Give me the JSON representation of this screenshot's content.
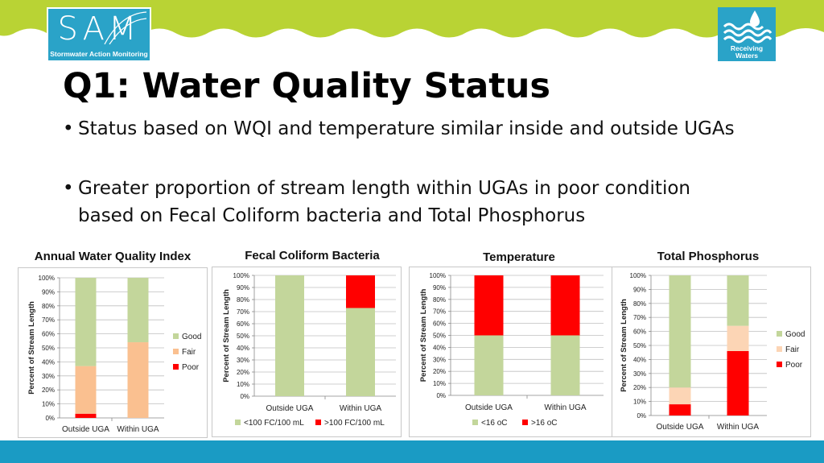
{
  "header": {
    "sam_logo": {
      "mark": "SAM",
      "subtitle": "Stormwater Action Monitoring"
    },
    "receiving_waters_logo": {
      "line1": "Receiving",
      "line2": "Waters"
    }
  },
  "slide": {
    "title": "Q1: Water Quality Status",
    "bullets": [
      "Status based on WQI and temperature similar inside and outside UGAs",
      "Greater proportion of stream length within UGAs in poor condition based on Fecal Coliform bacteria and Total Phosphorus"
    ]
  },
  "colors": {
    "green": "#8dc63f",
    "band_blue": "#1a9bc4",
    "good": "#c3d69b",
    "fair": "#fac090",
    "fair_tp": "#fcd5b5",
    "poor": "#ff0000",
    "gridline": "#bfbfbf"
  },
  "chart_data": [
    {
      "type": "bar",
      "stacked": true,
      "title": "Annual Water Quality Index",
      "ylabel": "Percent of Stream Length",
      "xlabel": "",
      "ylim": [
        0,
        100
      ],
      "yticks": [
        "0%",
        "10%",
        "20%",
        "30%",
        "40%",
        "50%",
        "60%",
        "70%",
        "80%",
        "90%",
        "100%"
      ],
      "categories": [
        "Outside UGA",
        "Within UGA"
      ],
      "series": [
        {
          "name": "Poor",
          "color": "#ff0000",
          "values": [
            3,
            0
          ]
        },
        {
          "name": "Fair",
          "color": "#fac090",
          "values": [
            34,
            54
          ]
        },
        {
          "name": "Good",
          "color": "#c3d69b",
          "values": [
            63,
            46
          ]
        }
      ],
      "legend": "right",
      "legend_order": [
        "Good",
        "Fair",
        "Poor"
      ],
      "grid": true
    },
    {
      "type": "bar",
      "stacked": true,
      "title": "Fecal Coliform Bacteria",
      "ylabel": "Percent of Stream Length",
      "xlabel": "",
      "ylim": [
        0,
        100
      ],
      "yticks": [
        "0%",
        "10%",
        "20%",
        "30%",
        "40%",
        "50%",
        "60%",
        "70%",
        "80%",
        "90%",
        "100%"
      ],
      "categories": [
        "Outside UGA",
        "Within UGA"
      ],
      "series": [
        {
          "name": "<100 FC/100 mL",
          "color": "#c3d69b",
          "values": [
            100,
            73
          ]
        },
        {
          "name": ">100 FC/100 mL",
          "color": "#ff0000",
          "values": [
            0,
            27
          ]
        }
      ],
      "legend": "bottom",
      "legend_order": [
        "<100 FC/100 mL",
        ">100 FC/100 mL"
      ],
      "grid": true
    },
    {
      "type": "bar",
      "stacked": true,
      "title": "Temperature",
      "ylabel": "Percent of Stream Length",
      "xlabel": "",
      "ylim": [
        0,
        100
      ],
      "yticks": [
        "0%",
        "10%",
        "20%",
        "30%",
        "40%",
        "50%",
        "60%",
        "70%",
        "80%",
        "90%",
        "100%"
      ],
      "categories": [
        "Outside UGA",
        "Within UGA"
      ],
      "series": [
        {
          "name": "<16 oC",
          "color": "#c3d69b",
          "values": [
            50,
            50
          ]
        },
        {
          "name": ">16 oC",
          "color": "#ff0000",
          "values": [
            50,
            50
          ]
        }
      ],
      "legend": "bottom",
      "legend_order": [
        "<16 oC",
        ">16 oC"
      ],
      "grid": true
    },
    {
      "type": "bar",
      "stacked": true,
      "title": "Total Phosphorus",
      "ylabel": "Percent of Stream Length",
      "xlabel": "",
      "ylim": [
        0,
        100
      ],
      "yticks": [
        "0%",
        "10%",
        "20%",
        "30%",
        "40%",
        "50%",
        "60%",
        "70%",
        "80%",
        "90%",
        "100%"
      ],
      "categories": [
        "Outside UGA",
        "Within UGA"
      ],
      "series": [
        {
          "name": "Poor",
          "color": "#ff0000",
          "values": [
            8,
            46
          ]
        },
        {
          "name": "Fair",
          "color": "#fcd5b5",
          "values": [
            12,
            18
          ]
        },
        {
          "name": "Good",
          "color": "#c3d69b",
          "values": [
            80,
            36
          ]
        }
      ],
      "legend": "right",
      "legend_order": [
        "Good",
        "Fair",
        "Poor"
      ],
      "grid": true
    }
  ]
}
